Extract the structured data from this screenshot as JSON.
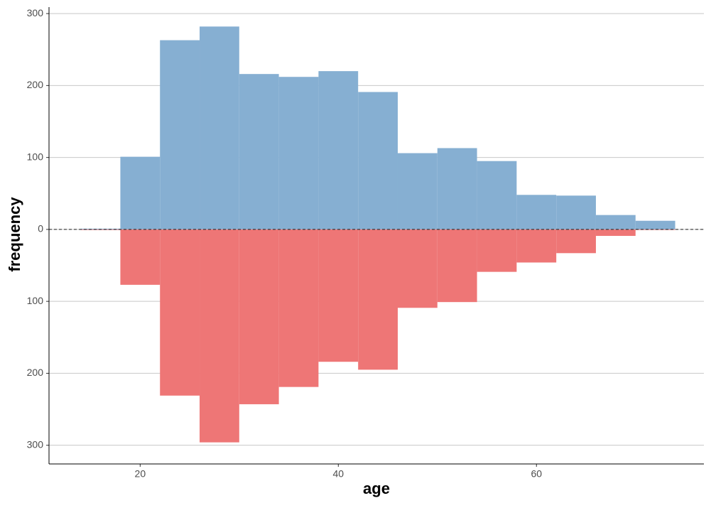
{
  "chart_data": {
    "type": "histogram",
    "x_label": "age",
    "y_label": "frequency",
    "bins": [
      14,
      18,
      22,
      26,
      30,
      34,
      38,
      42,
      46,
      50,
      54,
      58,
      62,
      66,
      70,
      74
    ],
    "series": [
      {
        "color": "#86afd2",
        "values": [
          1,
          101,
          263,
          282,
          216,
          212,
          220,
          191,
          106,
          113,
          95,
          48,
          47,
          20,
          12
        ]
      },
      {
        "color": "#ee7676",
        "values": [
          0,
          -77,
          -231,
          -296,
          -243,
          -219,
          -184,
          -195,
          -109,
          -101,
          -59,
          -46,
          -33,
          -9,
          0
        ]
      }
    ],
    "xlim": [
      10.8,
      76.9
    ],
    "xticks": [
      20,
      40,
      60
    ],
    "ylim": [
      -326,
      309
    ],
    "yticks": [
      {
        "value": -300,
        "label": "300"
      },
      {
        "value": -200,
        "label": "200"
      },
      {
        "value": -100,
        "label": "100"
      },
      0,
      100,
      200,
      300
    ],
    "grid": true
  }
}
